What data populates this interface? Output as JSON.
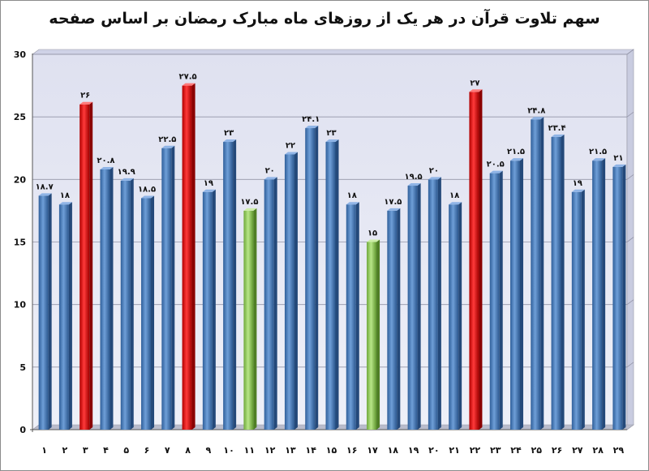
{
  "chart_data": {
    "type": "bar",
    "title": "سهم تلاوت قرآن در هر یک از روزهای ماه مبارک رمضان بر اساس صفحه",
    "xlabel": "",
    "ylabel": "",
    "ylim": [
      0,
      30
    ],
    "yticks": [
      0,
      5,
      10,
      15,
      20,
      25,
      30
    ],
    "grid": true,
    "categories": [
      "۱",
      "۲",
      "۳",
      "۴",
      "۵",
      "۶",
      "۷",
      "۸",
      "۹",
      "۱۰",
      "۱۱",
      "۱۲",
      "۱۳",
      "۱۴",
      "۱۵",
      "۱۶",
      "۱۷",
      "۱۸",
      "۱۹",
      "۲۰",
      "۲۱",
      "۲۲",
      "۲۳",
      "۲۴",
      "۲۵",
      "۲۶",
      "۲۷",
      "۲۸",
      "۲۹"
    ],
    "values": [
      18.7,
      18,
      26,
      20.8,
      19.9,
      18.5,
      22.5,
      27.5,
      19,
      23,
      17.5,
      20,
      22,
      24.1,
      23,
      18,
      15,
      17.5,
      19.5,
      20,
      18,
      27,
      20.5,
      21.5,
      24.8,
      23.4,
      19,
      21.5,
      21
    ],
    "data_labels": [
      "۱۸.۷",
      "۱۸",
      "۲۶",
      "۲۰.۸",
      "۱۹.۹",
      "۱۸.۵",
      "۲۲.۵",
      "۲۷.۵",
      "۱۹",
      "۲۳",
      "۱۷.۵",
      "۲۰",
      "۲۲",
      "۲۴.۱",
      "۲۳",
      "۱۸",
      "۱۵",
      "۱۷.۵",
      "۱۹.۵",
      "۲۰",
      "۱۸",
      "۲۷",
      "۲۰.۵",
      "۲۱.۵",
      "۲۴.۸",
      "۲۳.۴",
      "۱۹",
      "۲۱.۵",
      "۲۱"
    ],
    "colors": {
      "default": "#4f81bd",
      "high": "#e8141a",
      "low": "#92d050"
    },
    "bar_colors": [
      "default",
      "default",
      "high",
      "default",
      "default",
      "default",
      "default",
      "high",
      "default",
      "default",
      "low",
      "default",
      "default",
      "default",
      "default",
      "default",
      "low",
      "default",
      "default",
      "default",
      "default",
      "high",
      "default",
      "default",
      "default",
      "default",
      "default",
      "default",
      "default"
    ]
  }
}
